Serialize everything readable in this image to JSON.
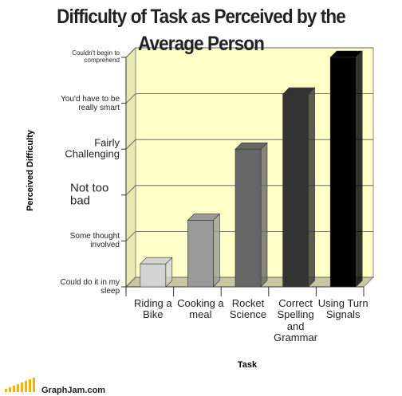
{
  "chart_data": {
    "type": "bar3d",
    "title": "Difficulty of Task as Perceived by the Average Person",
    "x_label": "Task",
    "y_label": "Perceived Difficulty",
    "categories": [
      "Riding a Bike",
      "Cooking a meal",
      "Rocket Science",
      "Correct Spelling and Grammar",
      "Using Turn Signals"
    ],
    "values": [
      0.5,
      1.45,
      3.0,
      4.2,
      5.0
    ],
    "colors": [
      "#d4d4d4",
      "#9a9a9a",
      "#666666",
      "#333333",
      "#000000"
    ],
    "ylim": [
      0,
      5
    ],
    "yticks": [
      {
        "value": 0,
        "label": "Could do it in my sleep"
      },
      {
        "value": 1,
        "label": "Some thought involved"
      },
      {
        "value": 2,
        "label": "Not too bad"
      },
      {
        "value": 3,
        "label": "Fairly Challenging"
      },
      {
        "value": 4,
        "label": "You'd have to be really smart"
      },
      {
        "value": 5,
        "label": "Couldn't begin to comprehend"
      }
    ],
    "grid": true,
    "footer": "GraphJam.com"
  }
}
